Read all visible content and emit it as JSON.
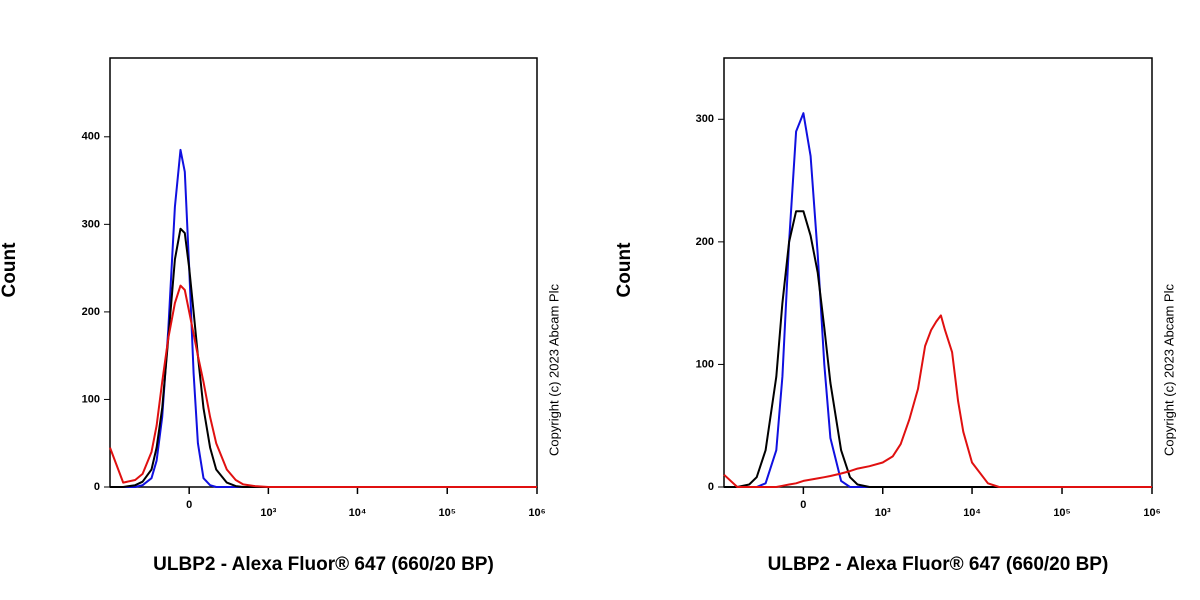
{
  "chart_data": [
    {
      "type": "line",
      "y_label": "Count",
      "x_label": "ULBP2 - Alexa Fluor® 647 (660/20 BP)",
      "annotation": "Copyright (c) 2023 Abcam Plc",
      "xscale": "biexponential",
      "xlim": [
        -1000,
        1000000
      ],
      "ylim": [
        0,
        490
      ],
      "xticks": [
        0,
        {
          "value": 1000,
          "label": "10³"
        },
        {
          "value": 10000,
          "label": "10⁴"
        },
        {
          "value": 100000,
          "label": "10⁵"
        },
        {
          "value": 1000000,
          "label": "10⁶"
        }
      ],
      "yticks": [
        0,
        100,
        200,
        300,
        400
      ],
      "x": [
        -1000,
        -700,
        -500,
        -400,
        -300,
        -250,
        -200,
        -150,
        -100,
        -60,
        -30,
        0,
        30,
        60,
        100,
        150,
        200,
        300,
        400,
        500,
        700,
        1000,
        2000,
        10000,
        100000,
        1000000
      ],
      "series": [
        {
          "color": "#1010e0",
          "values": [
            0,
            0,
            0,
            2,
            10,
            30,
            80,
            180,
            320,
            385,
            360,
            250,
            130,
            50,
            10,
            2,
            0,
            0,
            0,
            0,
            0,
            0,
            0,
            0,
            0,
            0
          ]
        },
        {
          "color": "#000000",
          "values": [
            0,
            0,
            2,
            6,
            20,
            45,
            90,
            170,
            260,
            295,
            290,
            250,
            200,
            150,
            90,
            45,
            20,
            5,
            1,
            0,
            0,
            0,
            0,
            0,
            0,
            0
          ]
        },
        {
          "color": "#e01010",
          "values": [
            45,
            5,
            8,
            15,
            40,
            70,
            120,
            170,
            210,
            230,
            225,
            200,
            175,
            150,
            120,
            80,
            50,
            20,
            8,
            3,
            1,
            0,
            0,
            0,
            0,
            0
          ]
        }
      ]
    },
    {
      "type": "line",
      "y_label": "Count",
      "x_label": "ULBP2 - Alexa Fluor® 647 (660/20 BP)",
      "annotation": "Copyright (c) 2023 Abcam Plc",
      "xscale": "biexponential",
      "xlim": [
        -1000,
        1000000
      ],
      "ylim": [
        0,
        350
      ],
      "xticks": [
        0,
        {
          "value": 1000,
          "label": "10³"
        },
        {
          "value": 10000,
          "label": "10⁴"
        },
        {
          "value": 100000,
          "label": "10⁵"
        },
        {
          "value": 1000000,
          "label": "10⁶"
        }
      ],
      "yticks": [
        0,
        100,
        200,
        300
      ],
      "x": [
        -1000,
        -700,
        -500,
        -400,
        -300,
        -200,
        -150,
        -100,
        -50,
        0,
        50,
        100,
        150,
        200,
        300,
        400,
        500,
        700,
        1000,
        1300,
        1600,
        2000,
        2500,
        3000,
        3500,
        4000,
        4500,
        5000,
        6000,
        7000,
        8000,
        10000,
        15000,
        20000,
        100000,
        1000000
      ],
      "series": [
        {
          "color": "#1010e0",
          "values": [
            0,
            0,
            0,
            0,
            3,
            30,
            90,
            200,
            290,
            305,
            270,
            190,
            100,
            40,
            5,
            0,
            0,
            0,
            0,
            0,
            0,
            0,
            0,
            0,
            0,
            0,
            0,
            0,
            0,
            0,
            0,
            0,
            0,
            0,
            0,
            0
          ]
        },
        {
          "color": "#000000",
          "values": [
            0,
            0,
            2,
            8,
            30,
            90,
            150,
            200,
            225,
            225,
            205,
            175,
            130,
            85,
            30,
            8,
            2,
            0,
            0,
            0,
            0,
            0,
            0,
            0,
            0,
            0,
            0,
            0,
            0,
            0,
            0,
            0,
            0,
            0,
            0,
            0
          ]
        },
        {
          "color": "#e01010",
          "values": [
            10,
            0,
            0,
            0,
            0,
            0,
            1,
            2,
            3,
            5,
            6,
            7,
            8,
            9,
            11,
            13,
            15,
            17,
            20,
            25,
            35,
            55,
            80,
            115,
            128,
            135,
            140,
            128,
            110,
            70,
            45,
            20,
            3,
            0,
            0,
            0
          ]
        }
      ]
    }
  ]
}
